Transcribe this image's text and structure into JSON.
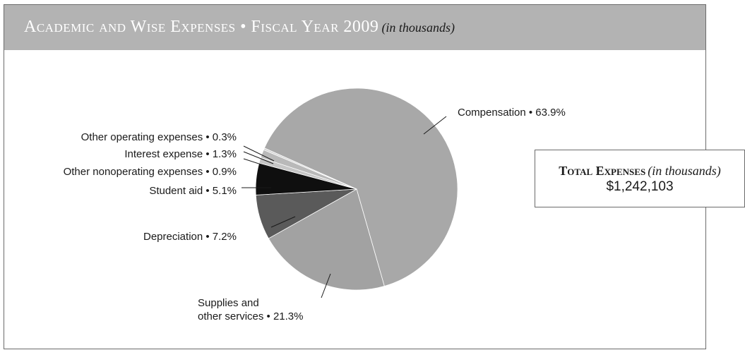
{
  "header": {
    "title": "Academic and Wise Expenses • Fiscal Year 2009",
    "subtitle": "(in thousands)"
  },
  "total": {
    "title": "Total Expenses",
    "unit": "(in thousands)",
    "value": "$1,242,103"
  },
  "chart_data": {
    "type": "pie",
    "slices": [
      {
        "label": "Compensation • 63.9%",
        "value": 63.9,
        "color": "#a8a8a8"
      },
      {
        "label": "Supplies and other services • 21.3%",
        "value": 21.3,
        "color": "#a2a2a2"
      },
      {
        "label": "Depreciation • 7.2%",
        "value": 7.2,
        "color": "#5a5a5a"
      },
      {
        "label": "Student aid • 5.1%",
        "value": 5.1,
        "color": "#0f0f0f"
      },
      {
        "label": "Other nonoperating expenses • 0.9%",
        "value": 0.9,
        "color": "#c6c6c6"
      },
      {
        "label": "Interest expense • 1.3%",
        "value": 1.3,
        "color": "#b9b9b9"
      },
      {
        "label": "Other operating expenses • 0.3%",
        "value": 0.3,
        "color": "#d4d4d4"
      }
    ]
  }
}
